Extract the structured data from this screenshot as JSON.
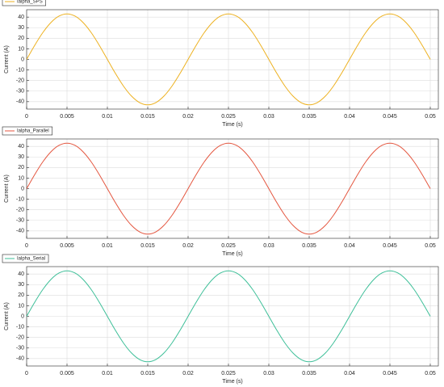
{
  "chart_data": [
    {
      "type": "line",
      "xlabel": "Time (s)",
      "ylabel": "Current (A)",
      "legend": "top-left",
      "grid": true,
      "xlim": [
        0,
        0.051
      ],
      "ylim": [
        -47,
        47
      ],
      "xticks": [
        0,
        0.005,
        0.01,
        0.015,
        0.02,
        0.025,
        0.03,
        0.035,
        0.04,
        0.045,
        0.05
      ],
      "yticks": [
        -40,
        -30,
        -20,
        -10,
        0,
        10,
        20,
        30,
        40
      ],
      "x": [
        0,
        0.001,
        0.002,
        0.003,
        0.004,
        0.005,
        0.006,
        0.007,
        0.008,
        0.009,
        0.01,
        0.011,
        0.012,
        0.013,
        0.014,
        0.015,
        0.016,
        0.017,
        0.018,
        0.019,
        0.02,
        0.021,
        0.022,
        0.023,
        0.024,
        0.025,
        0.026,
        0.027,
        0.028,
        0.029,
        0.03,
        0.031,
        0.032,
        0.033,
        0.034,
        0.035,
        0.036,
        0.037,
        0.038,
        0.039,
        0.04,
        0.041,
        0.042,
        0.043,
        0.044,
        0.045,
        0.046,
        0.047,
        0.048,
        0.049,
        0.05
      ],
      "series": [
        {
          "name": "Ialpha_SPS",
          "color": "#edb120",
          "values": [
            0,
            13.3,
            25.3,
            34.8,
            40.9,
            43,
            40.9,
            34.8,
            25.3,
            13.3,
            0,
            -13.3,
            -25.3,
            -34.8,
            -40.9,
            -43,
            -40.9,
            -34.8,
            -25.3,
            -13.3,
            0,
            13.3,
            25.3,
            34.8,
            40.9,
            43,
            40.9,
            34.8,
            25.3,
            13.3,
            0,
            -13.3,
            -25.3,
            -34.8,
            -40.9,
            -43,
            -40.9,
            -34.8,
            -25.3,
            -13.3,
            0,
            13.3,
            25.3,
            34.8,
            40.9,
            43,
            40.9,
            34.8,
            25.3,
            13.3,
            0
          ]
        }
      ]
    },
    {
      "type": "line",
      "xlabel": "Time (s)",
      "ylabel": "Current (A)",
      "legend": "top-left",
      "grid": true,
      "xlim": [
        0,
        0.051
      ],
      "ylim": [
        -47,
        47
      ],
      "xticks": [
        0,
        0.005,
        0.01,
        0.015,
        0.02,
        0.025,
        0.03,
        0.035,
        0.04,
        0.045,
        0.05
      ],
      "yticks": [
        -40,
        -30,
        -20,
        -10,
        0,
        10,
        20,
        30,
        40
      ],
      "x": [
        0,
        0.001,
        0.002,
        0.003,
        0.004,
        0.005,
        0.006,
        0.007,
        0.008,
        0.009,
        0.01,
        0.011,
        0.012,
        0.013,
        0.014,
        0.015,
        0.016,
        0.017,
        0.018,
        0.019,
        0.02,
        0.021,
        0.022,
        0.023,
        0.024,
        0.025,
        0.026,
        0.027,
        0.028,
        0.029,
        0.03,
        0.031,
        0.032,
        0.033,
        0.034,
        0.035,
        0.036,
        0.037,
        0.038,
        0.039,
        0.04,
        0.041,
        0.042,
        0.043,
        0.044,
        0.045,
        0.046,
        0.047,
        0.048,
        0.049,
        0.05
      ],
      "series": [
        {
          "name": "Ialpha_Parallel",
          "color": "#e4563f",
          "values": [
            0,
            13.3,
            25.3,
            34.8,
            40.9,
            43,
            40.9,
            34.8,
            25.3,
            13.3,
            0,
            -13.3,
            -25.3,
            -34.8,
            -40.9,
            -43,
            -40.9,
            -34.8,
            -25.3,
            -13.3,
            0,
            13.3,
            25.3,
            34.8,
            40.9,
            43,
            40.9,
            34.8,
            25.3,
            13.3,
            0,
            -13.3,
            -25.3,
            -34.8,
            -40.9,
            -43,
            -40.9,
            -34.8,
            -25.3,
            -13.3,
            0,
            13.3,
            25.3,
            34.8,
            40.9,
            43,
            40.9,
            34.8,
            25.3,
            13.3,
            0
          ]
        }
      ]
    },
    {
      "type": "line",
      "xlabel": "Time (s)",
      "ylabel": "Current (A)",
      "legend": "top-left",
      "grid": true,
      "xlim": [
        0,
        0.051
      ],
      "ylim": [
        -47,
        47
      ],
      "xticks": [
        0,
        0.005,
        0.01,
        0.015,
        0.02,
        0.025,
        0.03,
        0.035,
        0.04,
        0.045,
        0.05
      ],
      "yticks": [
        -40,
        -30,
        -20,
        -10,
        0,
        10,
        20,
        30,
        40
      ],
      "x": [
        0,
        0.001,
        0.002,
        0.003,
        0.004,
        0.005,
        0.006,
        0.007,
        0.008,
        0.009,
        0.01,
        0.011,
        0.012,
        0.013,
        0.014,
        0.015,
        0.016,
        0.017,
        0.018,
        0.019,
        0.02,
        0.021,
        0.022,
        0.023,
        0.024,
        0.025,
        0.026,
        0.027,
        0.028,
        0.029,
        0.03,
        0.031,
        0.032,
        0.033,
        0.034,
        0.035,
        0.036,
        0.037,
        0.038,
        0.039,
        0.04,
        0.041,
        0.042,
        0.043,
        0.044,
        0.045,
        0.046,
        0.047,
        0.048,
        0.049,
        0.05
      ],
      "series": [
        {
          "name": "Ialpha_Serial",
          "color": "#3dbf98",
          "values": [
            0,
            13.3,
            25.3,
            34.8,
            40.9,
            43,
            40.9,
            34.8,
            25.3,
            13.3,
            0,
            -13.3,
            -25.3,
            -34.8,
            -40.9,
            -43,
            -40.9,
            -34.8,
            -25.3,
            -13.3,
            0,
            13.3,
            25.3,
            34.8,
            40.9,
            43,
            40.9,
            34.8,
            25.3,
            13.3,
            0,
            -13.3,
            -25.3,
            -34.8,
            -40.9,
            -43,
            -40.9,
            -34.8,
            -25.3,
            -13.3,
            0,
            13.3,
            25.3,
            34.8,
            40.9,
            43,
            40.9,
            34.8,
            25.3,
            13.3,
            0
          ]
        }
      ]
    }
  ]
}
